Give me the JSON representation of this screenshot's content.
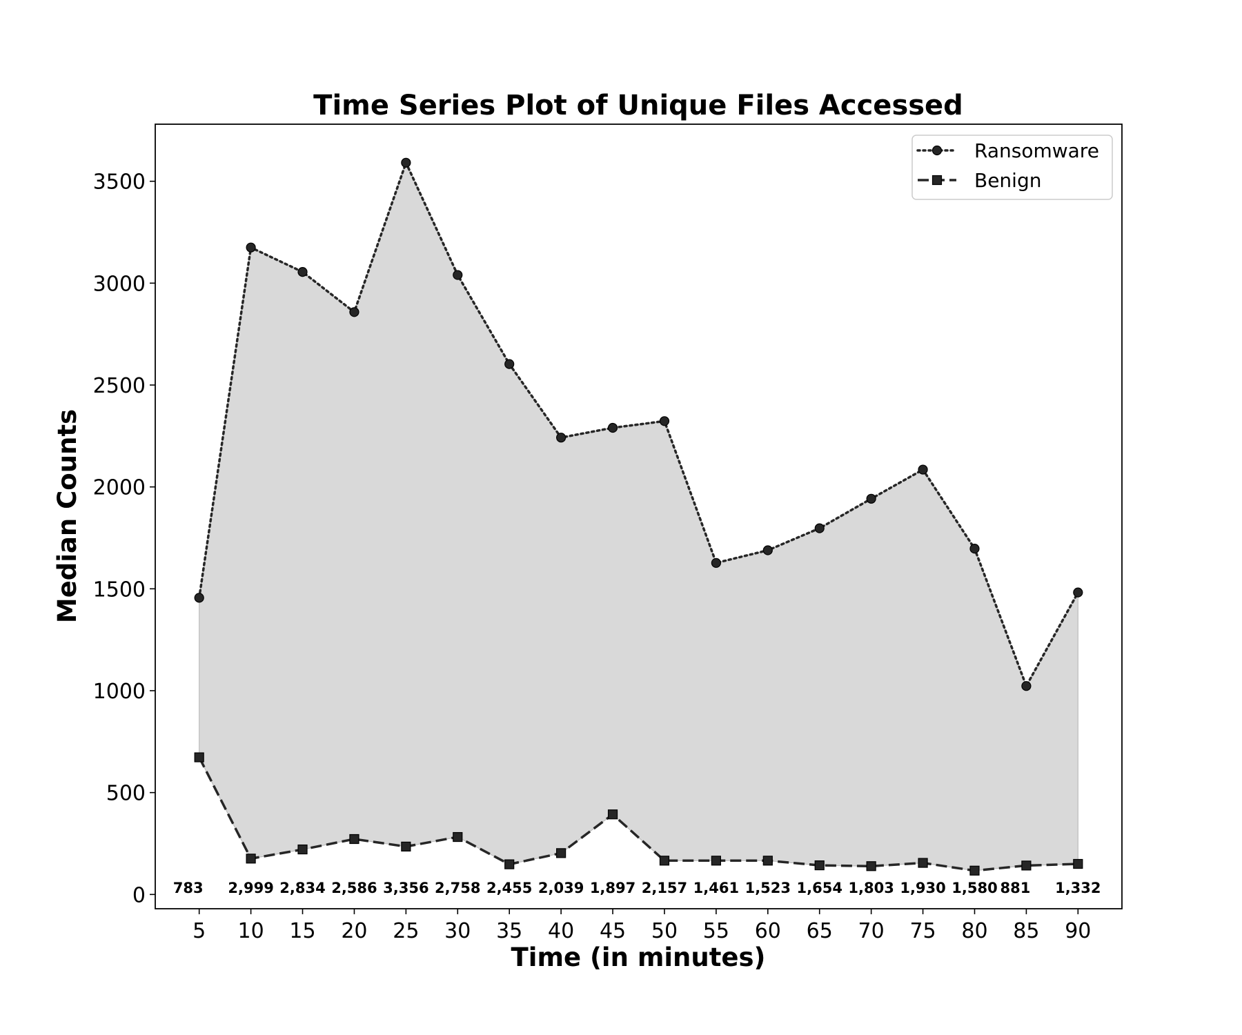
{
  "chart_data": {
    "type": "line",
    "title": "Time Series Plot of Unique Files Accessed",
    "xlabel": "Time (in minutes)",
    "ylabel": "Median Counts",
    "x": [
      5,
      10,
      15,
      20,
      25,
      30,
      35,
      40,
      45,
      50,
      55,
      60,
      65,
      70,
      75,
      80,
      85,
      90
    ],
    "xticks": [
      "5",
      "10",
      "15",
      "20",
      "25",
      "30",
      "35",
      "40",
      "45",
      "50",
      "55",
      "60",
      "65",
      "70",
      "75",
      "80",
      "85",
      "90"
    ],
    "yticks": [
      "0",
      "500",
      "1000",
      "1500",
      "2000",
      "2500",
      "3000",
      "3500"
    ],
    "ylim": [
      -70,
      3780
    ],
    "grid": false,
    "legend_position": "top-right",
    "fill_between": true,
    "series": [
      {
        "name": "Ransomware",
        "line_style": "dotted",
        "marker": "circle",
        "color": "#262626",
        "values": [
          1456,
          3175,
          3055,
          2858,
          3591,
          3040,
          2603,
          2242,
          2290,
          2323,
          1627,
          1689,
          1797,
          1942,
          2085,
          1697,
          1023,
          1482
        ]
      },
      {
        "name": "Benign",
        "line_style": "dashed",
        "marker": "square",
        "color": "#262626",
        "values": [
          673,
          176,
          221,
          272,
          235,
          282,
          148,
          203,
          393,
          166,
          166,
          166,
          143,
          139,
          155,
          117,
          142,
          150
        ]
      }
    ],
    "fill_color": "#d9d9d9",
    "difference_labels": [
      "783",
      "2,999",
      "2,834",
      "2,586",
      "3,356",
      "2,758",
      "2,455",
      "2,039",
      "1,897",
      "2,157",
      "1,461",
      "1,523",
      "1,654",
      "1,803",
      "1,930",
      "1,580",
      "881",
      "1,332"
    ]
  }
}
